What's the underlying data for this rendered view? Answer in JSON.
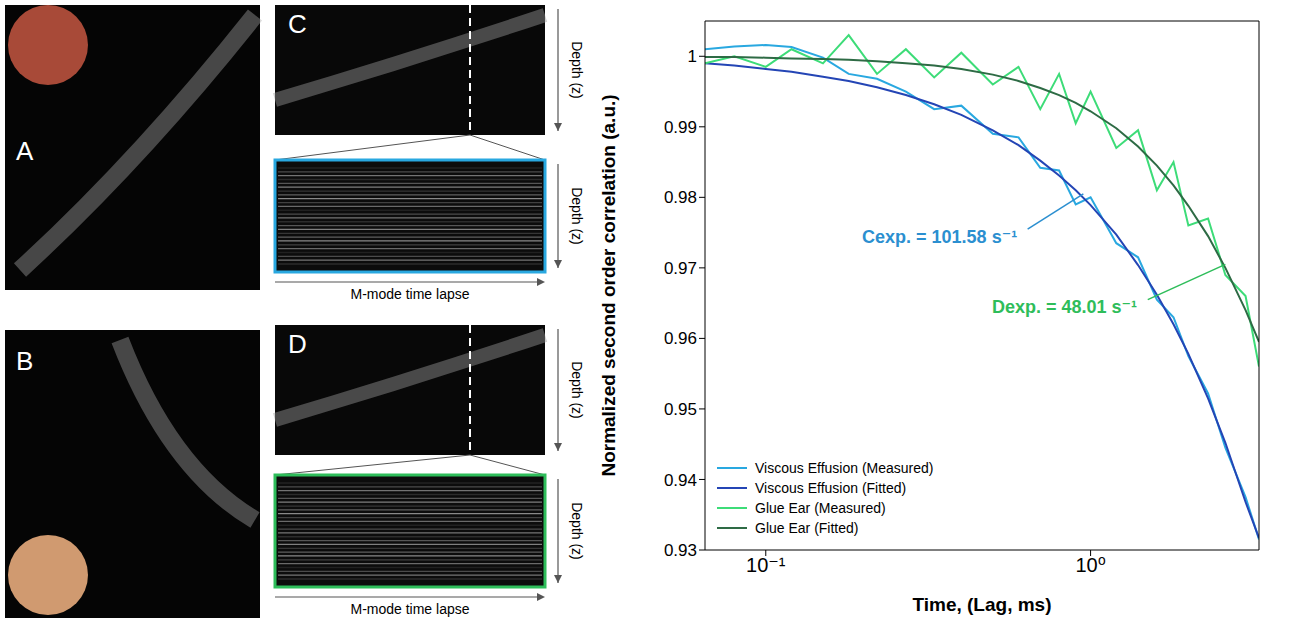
{
  "image_panels": [
    {
      "label": "A"
    },
    {
      "label": "B"
    },
    {
      "label": "C",
      "depth_label": "Depth (z)",
      "mmode": {
        "depth_label": "Depth (z)",
        "time_label": "M-mode time lapse",
        "border_color": "#29a8e0"
      }
    },
    {
      "label": "D",
      "depth_label": "Depth (z)",
      "mmode": {
        "depth_label": "Depth (z)",
        "time_label": "M-mode time lapse",
        "border_color": "#2ebd5a"
      }
    }
  ],
  "chart_data": {
    "type": "line",
    "x_label": "Time, (Lag, ms)",
    "y_label": "Normalized  second order correlation (a.u.)",
    "log": "x",
    "xlim": [
      0.065,
      3.3
    ],
    "xticks": [
      {
        "value": 0.1,
        "label": "10⁻¹"
      },
      {
        "value": 1,
        "label": "10⁰"
      }
    ],
    "ylim": [
      0.93,
      1.005
    ],
    "yticks": [
      0.93,
      0.94,
      0.95,
      0.96,
      0.97,
      0.98,
      0.99,
      1
    ],
    "grid": false,
    "legend": "lower left",
    "x": [
      0.065,
      0.08,
      0.1,
      0.12,
      0.15,
      0.18,
      0.22,
      0.27,
      0.33,
      0.4,
      0.5,
      0.6,
      0.7,
      0.8,
      0.9,
      1.0,
      1.2,
      1.4,
      1.6,
      1.8,
      2.0,
      2.3,
      2.6,
      3.0,
      3.3
    ],
    "series": [
      {
        "name": "Viscous Effusion (Measured)",
        "color": "#29a8e0",
        "values": [
          1.001,
          1.0014,
          1.0016,
          1.0013,
          0.9998,
          0.9975,
          0.9968,
          0.995,
          0.9925,
          0.993,
          0.989,
          0.9885,
          0.9842,
          0.9838,
          0.979,
          0.98,
          0.9735,
          0.9715,
          0.9655,
          0.963,
          0.9575,
          0.9522,
          0.9445,
          0.9375,
          0.9315
        ]
      },
      {
        "name": "Viscous Effusion (Fitted)",
        "color": "#2445b5",
        "values": [
          0.999,
          0.9987,
          0.9982,
          0.9978,
          0.9971,
          0.9965,
          0.9956,
          0.9945,
          0.9932,
          0.9917,
          0.9895,
          0.9874,
          0.9852,
          0.9831,
          0.981,
          0.9789,
          0.9747,
          0.9704,
          0.9662,
          0.962,
          0.9578,
          0.9515,
          0.9452,
          0.9368,
          0.9317
        ]
      },
      {
        "name": "Glue Ear (Measured)",
        "color": "#3ddc78",
        "values": [
          0.999,
          1.0,
          0.9985,
          1.001,
          0.999,
          1.003,
          0.9975,
          1.001,
          0.997,
          1.0005,
          0.996,
          0.9985,
          0.9925,
          0.9975,
          0.9905,
          0.995,
          0.987,
          0.9895,
          0.981,
          0.985,
          0.976,
          0.977,
          0.969,
          0.966,
          0.956
        ]
      },
      {
        "name": "Glue Ear (Fitted)",
        "color": "#2e6b45",
        "values": [
          0.9999,
          0.9999,
          0.9998,
          0.9997,
          0.9996,
          0.9995,
          0.9993,
          0.999,
          0.9987,
          0.9982,
          0.9974,
          0.9965,
          0.9955,
          0.9945,
          0.9934,
          0.9922,
          0.9898,
          0.9872,
          0.9845,
          0.9817,
          0.9788,
          0.9745,
          0.97,
          0.964,
          0.9595
        ]
      }
    ],
    "annotations": [
      {
        "text": "Cexp. = 101.58 s⁻¹",
        "color": "#2b8fd0"
      },
      {
        "text": "Dexp. = 48.01 s⁻¹",
        "color": "#2ebd5a"
      }
    ]
  }
}
